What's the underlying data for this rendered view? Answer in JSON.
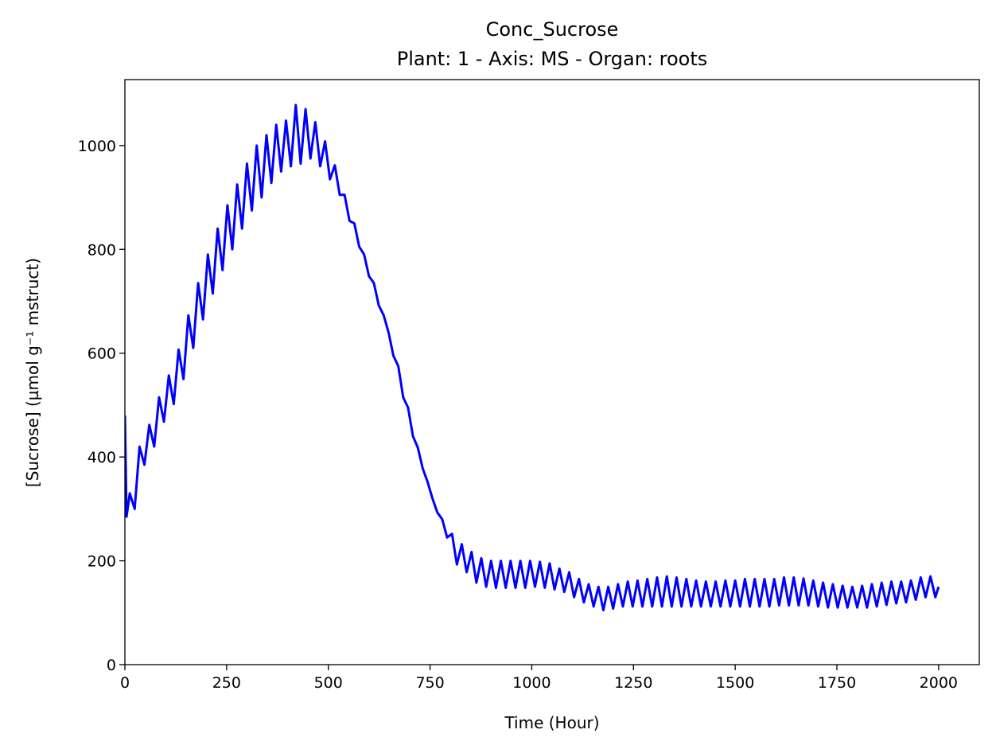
{
  "chart_data": {
    "type": "line",
    "title": "Conc_Sucrose",
    "subtitle": "Plant: 1 - Axis: MS - Organ: roots",
    "x_label": "Time (Hour)",
    "y_label": "[Sucrose] (µmol g⁻¹ mstruct)",
    "color": "#0000ff",
    "xlim": [
      0,
      2100
    ],
    "ylim": [
      0,
      1127
    ],
    "xticks": [
      0,
      250,
      500,
      750,
      1000,
      1250,
      1500,
      1750,
      2000
    ],
    "yticks": [
      0,
      200,
      400,
      600,
      800,
      1000
    ],
    "grid": false,
    "x": [
      0,
      4,
      12,
      24,
      36,
      48,
      60,
      72,
      84,
      96,
      108,
      120,
      132,
      144,
      156,
      168,
      180,
      192,
      204,
      216,
      228,
      240,
      252,
      264,
      276,
      288,
      300,
      312,
      324,
      336,
      348,
      360,
      372,
      384,
      396,
      408,
      420,
      432,
      444,
      456,
      468,
      480,
      492,
      504,
      516,
      528,
      540,
      552,
      564,
      576,
      588,
      600,
      612,
      624,
      636,
      648,
      660,
      672,
      684,
      696,
      708,
      720,
      732,
      744,
      756,
      768,
      780,
      792,
      804,
      816,
      828,
      840,
      852,
      864,
      876,
      888,
      900,
      912,
      924,
      936,
      948,
      960,
      972,
      984,
      996,
      1008,
      1020,
      1032,
      1044,
      1056,
      1068,
      1080,
      1092,
      1104,
      1116,
      1128,
      1140,
      1152,
      1164,
      1176,
      1188,
      1200,
      1212,
      1224,
      1236,
      1248,
      1260,
      1272,
      1284,
      1296,
      1308,
      1320,
      1332,
      1344,
      1356,
      1368,
      1380,
      1392,
      1404,
      1416,
      1428,
      1440,
      1452,
      1464,
      1476,
      1488,
      1500,
      1512,
      1524,
      1536,
      1548,
      1560,
      1572,
      1584,
      1596,
      1608,
      1620,
      1632,
      1644,
      1656,
      1668,
      1680,
      1692,
      1704,
      1716,
      1728,
      1740,
      1752,
      1764,
      1776,
      1788,
      1800,
      1812,
      1824,
      1836,
      1848,
      1860,
      1872,
      1884,
      1896,
      1908,
      1920,
      1932,
      1944,
      1956,
      1968,
      1980,
      1992,
      2000
    ],
    "values": [
      480,
      285,
      330,
      300,
      420,
      385,
      462,
      420,
      515,
      468,
      557,
      502,
      607,
      550,
      673,
      610,
      735,
      665,
      790,
      715,
      840,
      760,
      885,
      800,
      925,
      840,
      965,
      875,
      1000,
      900,
      1020,
      928,
      1040,
      950,
      1048,
      960,
      1078,
      965,
      1070,
      975,
      1045,
      960,
      1008,
      935,
      962,
      905,
      905,
      855,
      850,
      805,
      790,
      748,
      735,
      692,
      673,
      640,
      595,
      575,
      515,
      495,
      440,
      418,
      378,
      352,
      320,
      293,
      280,
      245,
      252,
      193,
      232,
      178,
      217,
      158,
      205,
      150,
      200,
      148,
      200,
      148,
      200,
      148,
      200,
      148,
      200,
      150,
      198,
      148,
      195,
      145,
      185,
      140,
      178,
      130,
      165,
      120,
      155,
      112,
      150,
      105,
      150,
      108,
      155,
      112,
      160,
      112,
      162,
      112,
      165,
      112,
      168,
      112,
      170,
      112,
      168,
      112,
      165,
      112,
      162,
      112,
      160,
      112,
      160,
      112,
      162,
      112,
      162,
      112,
      165,
      112,
      165,
      112,
      165,
      112,
      165,
      114,
      168,
      114,
      168,
      114,
      166,
      114,
      162,
      112,
      158,
      110,
      155,
      110,
      152,
      110,
      150,
      110,
      152,
      110,
      155,
      112,
      158,
      115,
      160,
      118,
      160,
      120,
      162,
      125,
      168,
      130,
      170,
      130,
      150
    ]
  }
}
